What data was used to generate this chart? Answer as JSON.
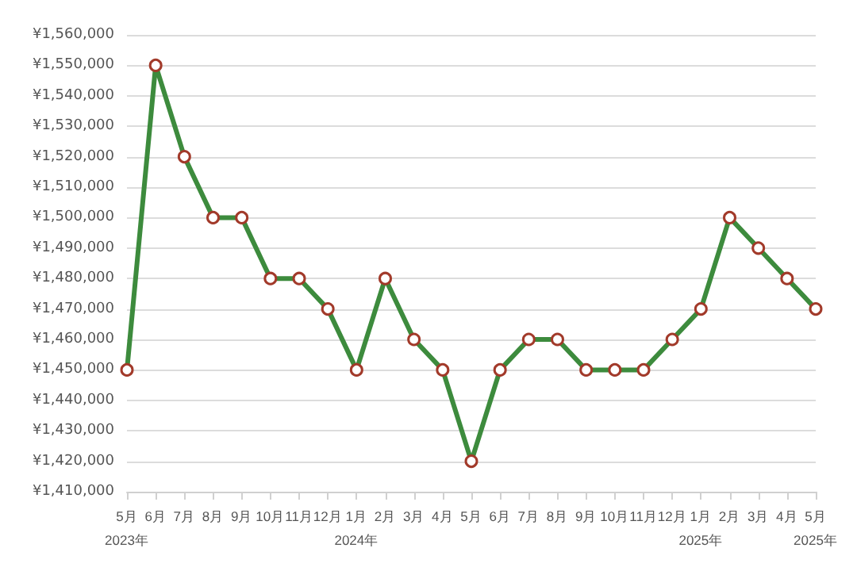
{
  "chart_data": {
    "type": "line",
    "categories": [
      "5月\n2023年",
      "6月",
      "7月",
      "8月",
      "9月",
      "10月",
      "11月",
      "12月",
      "1月\n2024年",
      "2月",
      "3月",
      "4月",
      "5月",
      "6月",
      "7月",
      "8月",
      "9月",
      "10月",
      "11月",
      "12月",
      "1月\n2025年",
      "2月",
      "3月",
      "4月",
      "5月\n2025年"
    ],
    "series": [
      {
        "color": "#3d8b3d",
        "values": [
          1450000,
          1550000,
          1520000,
          1500000,
          1500000,
          1480000,
          1480000,
          1470000,
          1450000,
          1480000,
          1460000,
          1450000,
          1420000,
          1450000,
          1460000,
          1460000,
          1450000,
          1450000,
          1450000,
          1460000,
          1470000,
          1500000,
          1490000,
          1480000,
          1470000
        ]
      }
    ],
    "ylim": [
      1410000,
      1560000
    ],
    "yticks": [
      {
        "value": 1410000,
        "label": "¥1,410,000"
      },
      {
        "value": 1420000,
        "label": "¥1,420,000"
      },
      {
        "value": 1430000,
        "label": "¥1,430,000"
      },
      {
        "value": 1440000,
        "label": "¥1,440,000"
      },
      {
        "value": 1450000,
        "label": "¥1,450,000"
      },
      {
        "value": 1460000,
        "label": "¥1,460,000"
      },
      {
        "value": 1470000,
        "label": "¥1,470,000"
      },
      {
        "value": 1480000,
        "label": "¥1,480,000"
      },
      {
        "value": 1490000,
        "label": "¥1,490,000"
      },
      {
        "value": 1500000,
        "label": "¥1,500,000"
      },
      {
        "value": 1510000,
        "label": "¥1,510,000"
      },
      {
        "value": 1520000,
        "label": "¥1,520,000"
      },
      {
        "value": 1530000,
        "label": "¥1,530,000"
      },
      {
        "value": 1540000,
        "label": "¥1,540,000"
      },
      {
        "value": 1550000,
        "label": "¥1,550,000"
      },
      {
        "value": 1560000,
        "label": "¥1,560,000"
      }
    ],
    "grid": "y",
    "marker": "circle",
    "line_style": "solid"
  }
}
